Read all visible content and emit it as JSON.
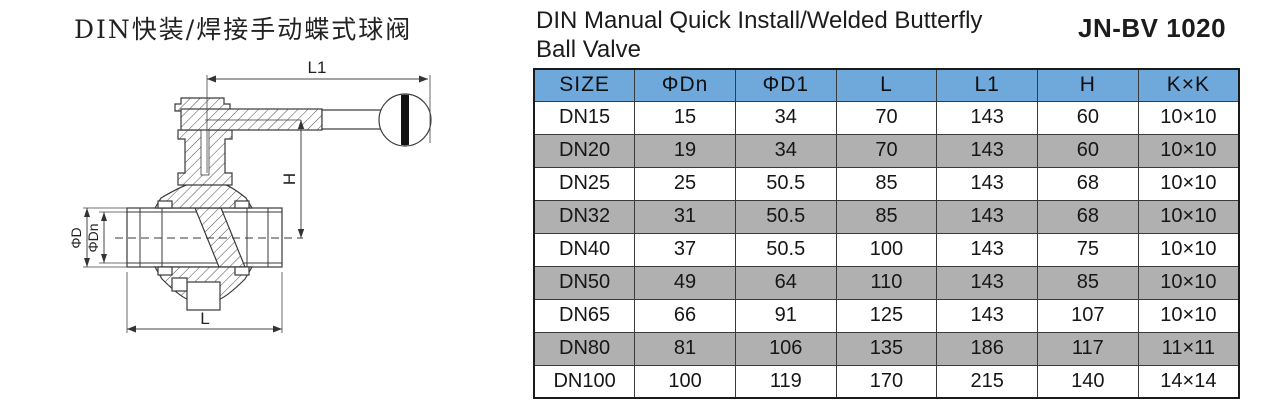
{
  "page": {
    "chinese_title": "DIN快装/焊接手动蝶式球阀",
    "english_title_line1": "DIN Manual Quick Install/Welded Butterfly",
    "english_title_line2": "Ball Valve",
    "model_code": "JN-BV 1020"
  },
  "drawing": {
    "dim_labels": {
      "handle_length": "L1",
      "height": "H",
      "outer_diameter": "ΦD",
      "nominal_diameter": "ΦDn",
      "body_length": "L"
    }
  },
  "table": {
    "columns": [
      "SIZE",
      "ΦDn",
      "ΦD1",
      "L",
      "L1",
      "H",
      "K×K"
    ],
    "rows": [
      [
        "DN15",
        "15",
        "34",
        "70",
        "143",
        "60",
        "10×10"
      ],
      [
        "DN20",
        "19",
        "34",
        "70",
        "143",
        "60",
        "10×10"
      ],
      [
        "DN25",
        "25",
        "50.5",
        "85",
        "143",
        "68",
        "10×10"
      ],
      [
        "DN32",
        "31",
        "50.5",
        "85",
        "143",
        "68",
        "10×10"
      ],
      [
        "DN40",
        "37",
        "50.5",
        "100",
        "143",
        "75",
        "10×10"
      ],
      [
        "DN50",
        "49",
        "64",
        "110",
        "143",
        "85",
        "10×10"
      ],
      [
        "DN65",
        "66",
        "91",
        "125",
        "143",
        "107",
        "10×10"
      ],
      [
        "DN80",
        "81",
        "106",
        "135",
        "186",
        "117",
        "11×11"
      ],
      [
        "DN100",
        "100",
        "119",
        "170",
        "215",
        "140",
        "14×14"
      ]
    ]
  },
  "colors": {
    "header_bg": "#6FA9DC",
    "alt_row_bg": "#B0B0B0",
    "line_color": "#3a3a3a"
  }
}
